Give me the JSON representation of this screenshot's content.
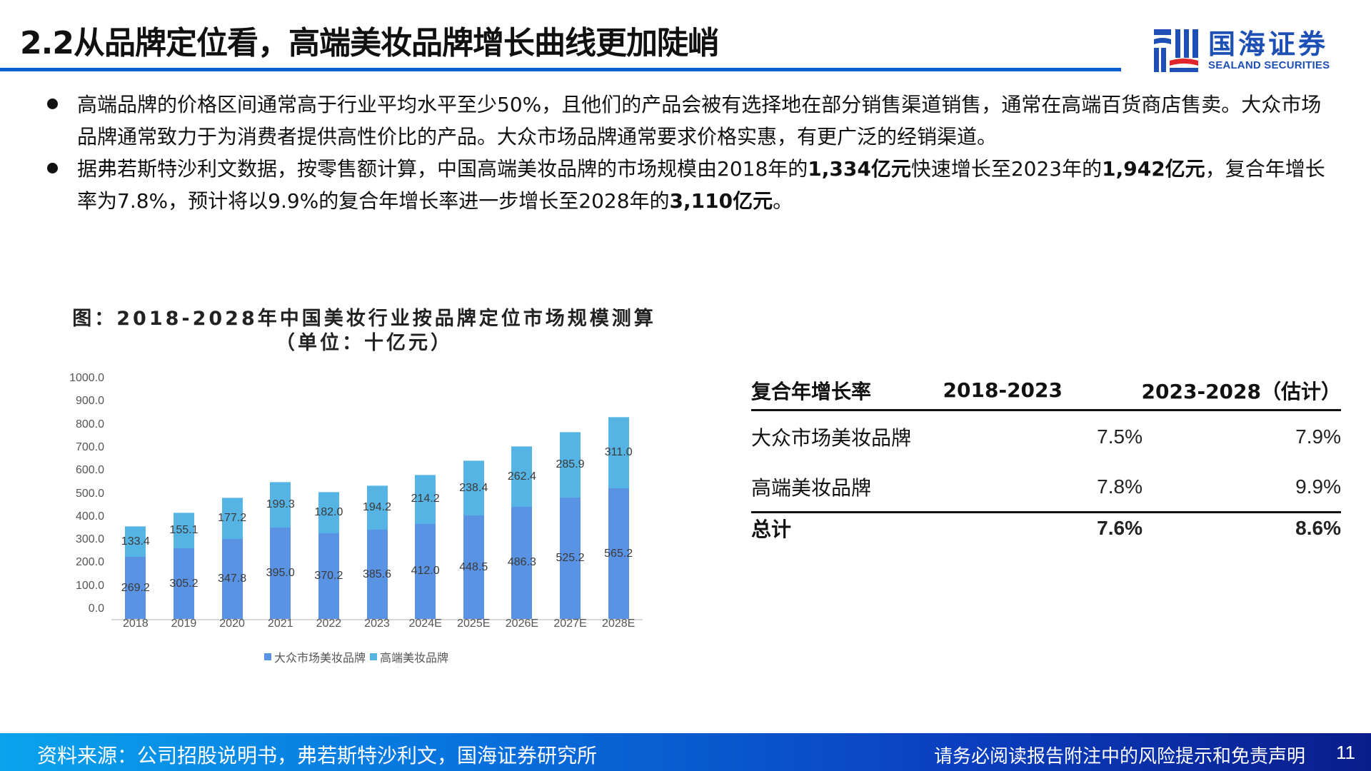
{
  "header": {
    "title": "2.2从品牌定位看，高端美妆品牌增长曲线更加陡峭",
    "rule_color": "#0a5fd0",
    "logo": {
      "name_cn": "国海证券",
      "name_en": "SEALAND SECURITIES",
      "brand_color": "#1d4fb5",
      "accent_color": "#e0262b"
    }
  },
  "bullets": [
    {
      "segments": [
        {
          "text": "高端品牌的价格区间通常高于行业平均水平至少50%，且他们的产品会被有选择地在部分销售渠道销售，通常在高端百货商店售卖。大众市场品牌通常致力于为消费者提供高性价比的产品。大众市场品牌通常要求价格实惠，有更广泛的经销渠道。",
          "bold": false
        }
      ]
    },
    {
      "segments": [
        {
          "text": "据弗若斯特沙利文数据，按零售额计算，中国高端美妆品牌的市场规模由2018年的",
          "bold": false
        },
        {
          "text": "1,334亿元",
          "bold": true
        },
        {
          "text": "快速增长至2023年的",
          "bold": false
        },
        {
          "text": "1,942亿元",
          "bold": true
        },
        {
          "text": "，复合年增长率为7.8%，预计将以9.9%的复合年增长率进一步增长至2028年的",
          "bold": false
        },
        {
          "text": "3,110亿元",
          "bold": true
        },
        {
          "text": "。",
          "bold": false
        }
      ]
    }
  ],
  "chart_title": {
    "line1": "图：2018-2028年中国美妆行业按品牌定位市场规模测算",
    "line2": "（单位：十亿元）"
  },
  "chart_data": {
    "type": "bar",
    "stacked": true,
    "title": "图：2018-2028年中国美妆行业按品牌定位市场规模测算（单位：十亿元）",
    "xlabel": "",
    "ylabel": "",
    "ylim": [
      0,
      1000
    ],
    "yticks": [
      "0.0",
      "100.0",
      "200.0",
      "300.0",
      "400.0",
      "500.0",
      "600.0",
      "700.0",
      "800.0",
      "900.0",
      "1000.0"
    ],
    "grid": false,
    "legend_position": "bottom",
    "categories": [
      "2018",
      "2019",
      "2020",
      "2021",
      "2022",
      "2023",
      "2024E",
      "2025E",
      "2026E",
      "2027E",
      "2028E"
    ],
    "series": [
      {
        "name": "大众市场美妆品牌",
        "color": "#5b93e4",
        "values": [
          269.2,
          305.2,
          347.8,
          395.0,
          370.2,
          385.6,
          412.0,
          448.5,
          486.3,
          525.2,
          565.2
        ]
      },
      {
        "name": "高端美妆品牌",
        "color": "#55b4e3",
        "values": [
          133.4,
          155.1,
          177.2,
          199.3,
          182.0,
          194.2,
          214.2,
          238.4,
          262.4,
          285.9,
          311.0
        ]
      }
    ]
  },
  "cagr_table": {
    "header": [
      "复合年增长率",
      "2018-2023",
      "2023-2028（估计）"
    ],
    "rows": [
      [
        "大众市场美妆品牌",
        "7.5%",
        "7.9%"
      ],
      [
        "高端美妆品牌",
        "7.8%",
        "9.9%"
      ]
    ],
    "total": [
      "总计",
      "7.6%",
      "8.6%"
    ]
  },
  "footer": {
    "source": "资料来源：公司招股说明书，弗若斯特沙利文，国海证券研究所",
    "disclaimer": "请务必阅读报告附注中的风险提示和免责声明",
    "page_number": "11"
  }
}
